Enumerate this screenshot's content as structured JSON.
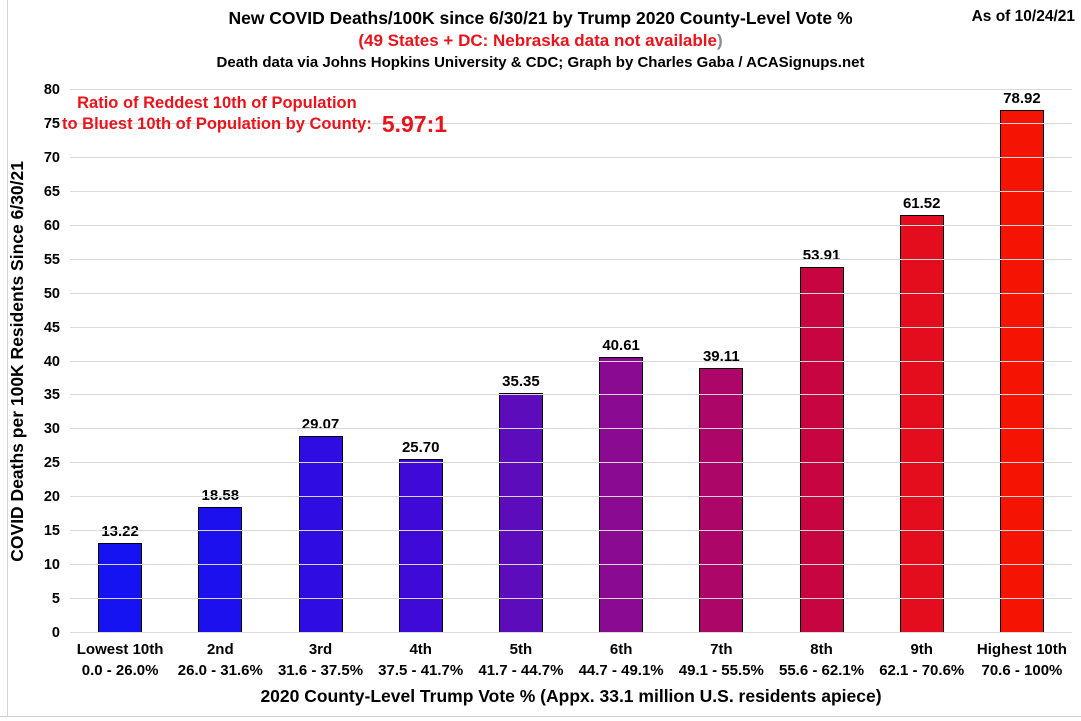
{
  "header": {
    "title": "New COVID Deaths/100K since 6/30/21 by Trump 2020 County-Level Vote %",
    "subtitle_red": "(49 States + DC: Nebraska data not available",
    "subtitle_close_paren": ")",
    "credit": "Death data via Johns Hopkins University & CDC; Graph by Charles Gaba / ACASignups.net",
    "as_of": "As of 10/24/21"
  },
  "annotation": {
    "line1": "Ratio of Reddest 10th of Population",
    "line2": "to Bluest 10th of Population by County:",
    "ratio_value": "5.97:1"
  },
  "colors": {
    "red_text": "#e8131b",
    "gridline": "#d9d9d9",
    "bar_border": "#000000",
    "paren_gray": "#8a8a8a"
  },
  "chart_data": {
    "type": "bar",
    "title": "New COVID Deaths/100K since 6/30/21 by Trump 2020 County-Level Vote %",
    "xlabel": "2020 County-Level Trump Vote % (Appx. 33.1 million U.S. residents apiece)",
    "ylabel": "COVID Deaths per 100K Residents Since 6/30/21",
    "ylim": [
      0,
      80
    ],
    "ytick_step": 5,
    "grid": true,
    "legend": "none",
    "categories": [
      {
        "tier": "Lowest 10th",
        "range": "0.0 - 26.0%"
      },
      {
        "tier": "2nd",
        "range": "26.0 - 31.6%"
      },
      {
        "tier": "3rd",
        "range": "31.6 - 37.5%"
      },
      {
        "tier": "4th",
        "range": "37.5 - 41.7%"
      },
      {
        "tier": "5th",
        "range": "41.7 - 44.7%"
      },
      {
        "tier": "6th",
        "range": "44.7 - 49.1%"
      },
      {
        "tier": "7th",
        "range": "49.1 - 55.5%"
      },
      {
        "tier": "8th",
        "range": "55.6 - 62.1%"
      },
      {
        "tier": "9th",
        "range": "62.1 - 70.6%"
      },
      {
        "tier": "Highest 10th",
        "range": "70.6 - 100%"
      }
    ],
    "values": [
      13.22,
      18.58,
      29.07,
      25.7,
      35.35,
      40.61,
      39.11,
      53.91,
      61.52,
      78.92
    ],
    "value_labels": [
      "13.22",
      "18.58",
      "29.07",
      "25.70",
      "35.35",
      "40.61",
      "39.11",
      "53.91",
      "61.52",
      "78.92"
    ],
    "bar_colors": [
      "#1513f2",
      "#1d10ee",
      "#2e0ce2",
      "#3f0ad7",
      "#5c0cba",
      "#8a0a92",
      "#ac0768",
      "#c70541",
      "#e30d1d",
      "#f51404"
    ]
  }
}
